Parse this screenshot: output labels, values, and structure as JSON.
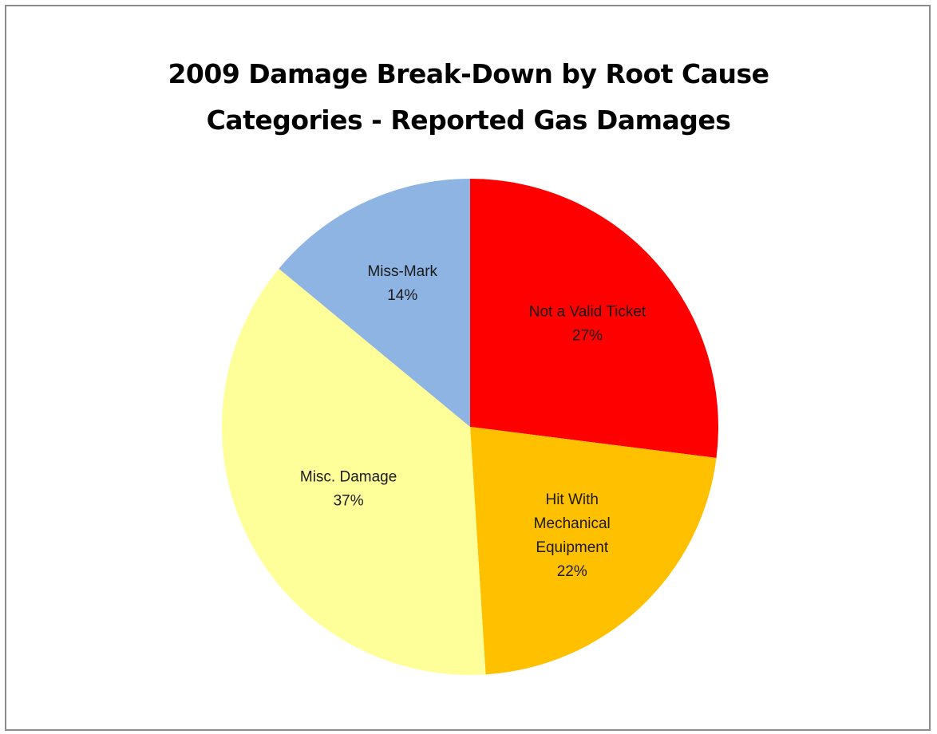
{
  "chart_data": {
    "type": "pie",
    "title": "2009 Damage Break-Down by Root Cause Categories - Reported Gas Damages",
    "title_lines": [
      "2009 Damage Break-Down by Root Cause",
      "Categories - Reported Gas Damages"
    ],
    "slices": [
      {
        "label": "Not a Valid Ticket",
        "value": 27,
        "display": "27%",
        "color": "#ff0000"
      },
      {
        "label": "Hit With Mechanical Equipment",
        "value": 22,
        "display": "22%",
        "color": "#ffc000"
      },
      {
        "label": "Misc. Damage",
        "value": 37,
        "display": "37%",
        "color": "#ffff99"
      },
      {
        "label": "Miss-Mark",
        "value": 14,
        "display": "14%",
        "color": "#8eb4e3"
      }
    ],
    "label_lines": [
      [
        "Not a Valid Ticket"
      ],
      [
        "Hit With",
        "Mechanical",
        "Equipment"
      ],
      [
        "Misc. Damage"
      ],
      [
        "Miss-Mark"
      ]
    ],
    "start_angle_deg": 0,
    "direction": "clockwise",
    "legend": "none"
  }
}
